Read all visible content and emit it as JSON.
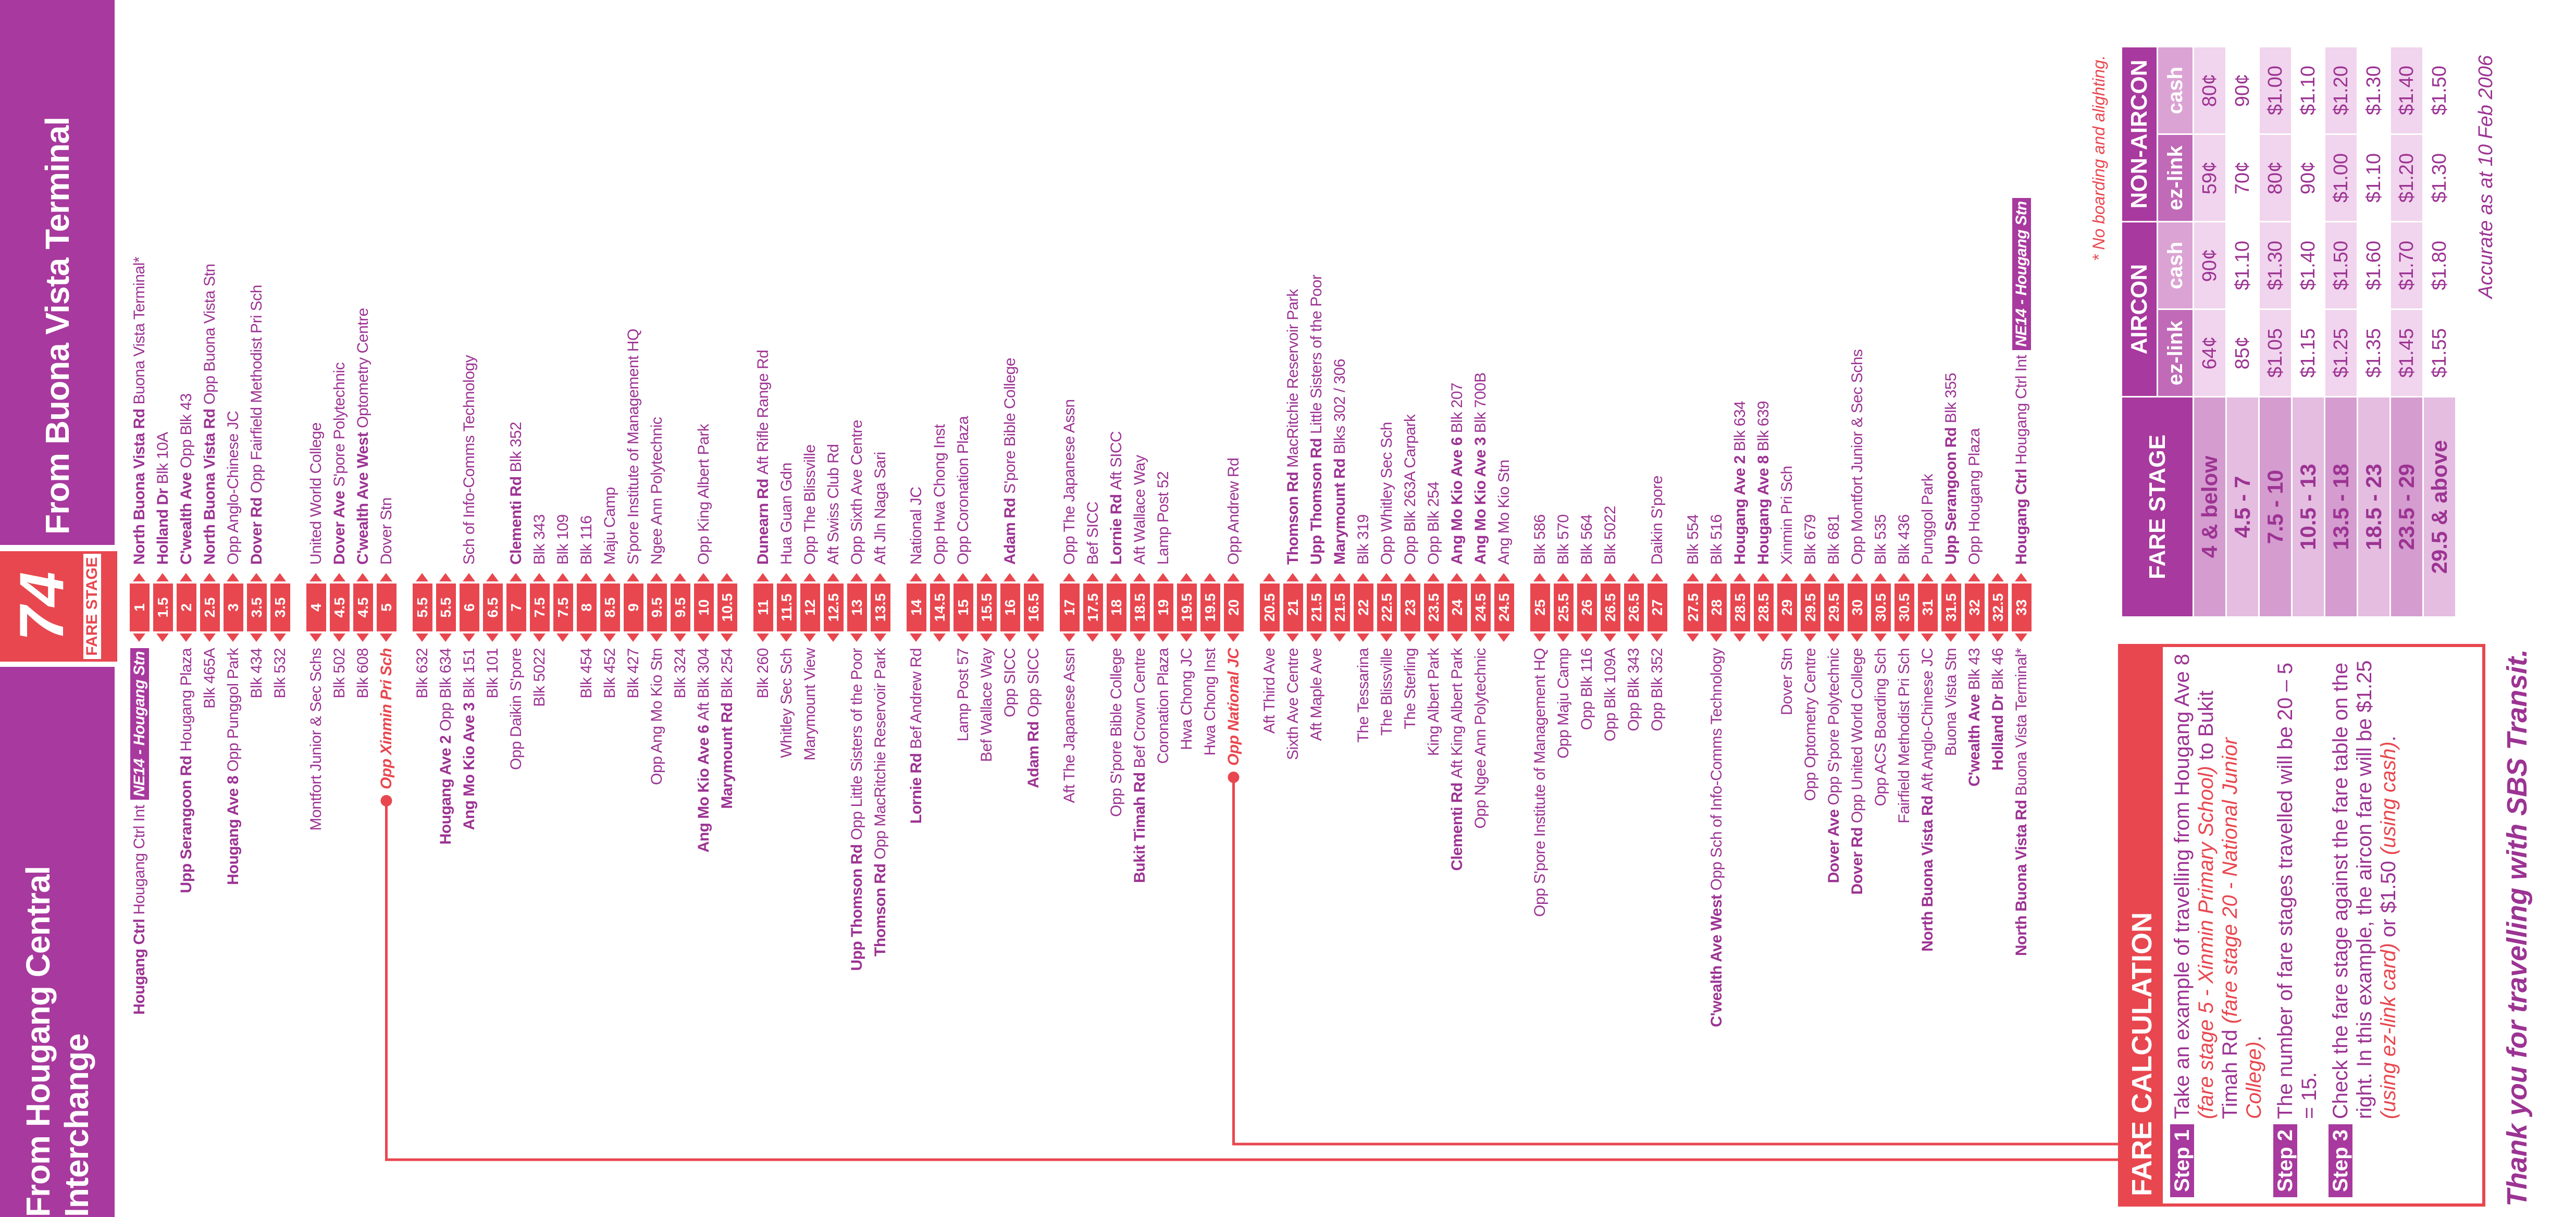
{
  "route": "74",
  "route_label": "FARE STAGE",
  "headers": {
    "from_left": "From Hougang Central Interchange",
    "from_right": "From Buona Vista Terminal"
  },
  "groups": [
    [
      {
        "stage": 1,
        "left": {
          "road": "Hougang Ctrl",
          "name": "Hougang Ctrl Int",
          "badge": "NE14 - Hougang Stn"
        },
        "right": {
          "road": "North Buona Vista Rd",
          "name": "Buona Vista Terminal*"
        }
      },
      {
        "stage": 1.5,
        "left": null,
        "right": {
          "road": "Holland Dr",
          "name": "Blk 10A"
        }
      },
      {
        "stage": 2,
        "left": {
          "road": "Upp Serangoon Rd",
          "name": "Hougang Plaza"
        },
        "right": {
          "road": "C'wealth Ave",
          "name": "Opp Blk 43"
        }
      },
      {
        "stage": 2.5,
        "left": {
          "name": "Blk 465A"
        },
        "right": {
          "road": "North Buona Vista Rd",
          "name": "Opp Buona Vista Stn"
        }
      },
      {
        "stage": 3,
        "left": {
          "road": "Hougang Ave 8",
          "name": "Opp Punggol Park"
        },
        "right": {
          "name": "Opp Anglo-Chinese JC"
        }
      },
      {
        "stage": 3.5,
        "left": {
          "name": "Blk 434"
        },
        "right": {
          "road": "Dover Rd",
          "name": "Opp Fairfield Methodist Pri Sch"
        }
      },
      {
        "stage": 3.5,
        "left": {
          "name": "Blk 532"
        },
        "right": null
      }
    ],
    [
      {
        "stage": 4,
        "left": {
          "name": "Montfort Junior & Sec Schs"
        },
        "right": {
          "name": "United World College"
        }
      },
      {
        "stage": 4.5,
        "left": {
          "name": "Blk 502"
        },
        "right": {
          "road": "Dover Ave",
          "name": "S'pore Polytechnic"
        }
      },
      {
        "stage": 4.5,
        "left": {
          "name": "Blk 608"
        },
        "right": {
          "road": "C'wealth Ave West",
          "name": "Optometry Centre"
        }
      },
      {
        "stage": 5,
        "left": {
          "name": "Opp Xinmin Pri Sch",
          "highlight": true
        },
        "right": {
          "name": "Dover Stn"
        }
      }
    ],
    [
      {
        "stage": 5.5,
        "left": {
          "name": "Blk 632"
        },
        "right": null
      },
      {
        "stage": 5.5,
        "left": {
          "road": "Hougang Ave 2",
          "name": "Opp Blk 634"
        },
        "right": null
      },
      {
        "stage": 6,
        "left": {
          "road": "Ang Mo Kio Ave 3",
          "name": "Blk 151"
        },
        "right": {
          "name": "Sch of Info-Comms Technology"
        }
      },
      {
        "stage": 6.5,
        "left": {
          "name": "Blk 101"
        },
        "right": null
      },
      {
        "stage": 7,
        "left": {
          "name": "Opp Daikin S'pore"
        },
        "right": {
          "road": "Clementi Rd",
          "name": "Blk 352"
        }
      },
      {
        "stage": 7.5,
        "left": {
          "name": "Blk 5022"
        },
        "right": {
          "name": "Blk 343"
        }
      },
      {
        "stage": 7.5,
        "left": null,
        "right": {
          "name": "Blk 109"
        }
      },
      {
        "stage": 8,
        "left": {
          "name": "Blk 454"
        },
        "right": {
          "name": "Blk 116"
        }
      },
      {
        "stage": 8.5,
        "left": {
          "name": "Blk 452"
        },
        "right": {
          "name": "Maju Camp"
        }
      },
      {
        "stage": 9,
        "left": {
          "name": "Blk 427"
        },
        "right": {
          "name": "S'pore Institute of Management HQ"
        }
      },
      {
        "stage": 9.5,
        "left": {
          "name": "Opp Ang Mo Kio Stn"
        },
        "right": {
          "name": "Ngee Ann Polytechnic"
        }
      },
      {
        "stage": 9.5,
        "left": {
          "name": "Blk 324"
        },
        "right": null
      },
      {
        "stage": 10,
        "left": {
          "road": "Ang Mo Kio Ave 6",
          "name": "Aft Blk 304"
        },
        "right": {
          "name": "Opp King Albert Park"
        }
      },
      {
        "stage": 10.5,
        "left": {
          "road": "Marymount Rd",
          "name": "Blk 254"
        },
        "right": null
      }
    ],
    [
      {
        "stage": 11,
        "left": {
          "name": "Blk 260"
        },
        "right": {
          "road": "Dunearn Rd",
          "name": "Aft Rifle Range Rd"
        }
      },
      {
        "stage": 11.5,
        "left": {
          "name": "Whitley Sec Sch"
        },
        "right": {
          "name": "Hua Guan Gdn"
        }
      },
      {
        "stage": 12,
        "left": {
          "name": "Marymount View"
        },
        "right": {
          "name": "Opp The Blissville"
        }
      },
      {
        "stage": 12.5,
        "left": null,
        "right": {
          "name": "Aft Swiss Club Rd"
        }
      },
      {
        "stage": 13,
        "left": {
          "road": "Upp Thomson Rd",
          "name": "Opp Little Sisters of the Poor"
        },
        "right": {
          "name": "Opp Sixth Ave Centre"
        }
      },
      {
        "stage": 13.5,
        "left": {
          "road": "Thomson Rd",
          "name": "Opp MacRitchie Reservoir Park"
        },
        "right": {
          "name": "Aft Jln Naga Sari"
        }
      }
    ],
    [
      {
        "stage": 14,
        "left": {
          "road": "Lornie Rd",
          "name": "Bef Andrew Rd"
        },
        "right": {
          "name": "National JC"
        }
      },
      {
        "stage": 14.5,
        "left": null,
        "right": {
          "name": "Opp Hwa Chong Inst"
        }
      },
      {
        "stage": 15,
        "left": {
          "name": "Lamp Post 57"
        },
        "right": {
          "name": "Opp Coronation Plaza"
        }
      },
      {
        "stage": 15.5,
        "left": {
          "name": "Bef Wallace Way"
        },
        "right": null
      },
      {
        "stage": 16,
        "left": {
          "name": "Opp SICC"
        },
        "right": {
          "road": "Adam Rd",
          "name": "S'pore Bible College"
        }
      },
      {
        "stage": 16.5,
        "left": {
          "road": "Adam Rd",
          "name": "Opp SICC"
        },
        "right": null
      }
    ],
    [
      {
        "stage": 17,
        "left": {
          "name": "Aft The Japanese Assn"
        },
        "right": {
          "name": "Opp The Japanese Assn"
        }
      },
      {
        "stage": 17.5,
        "left": null,
        "right": {
          "name": "Bef SICC"
        }
      },
      {
        "stage": 18,
        "left": {
          "name": "Opp S'pore Bible College"
        },
        "right": {
          "road": "Lornie Rd",
          "name": "Aft SICC"
        }
      },
      {
        "stage": 18.5,
        "left": {
          "road": "Bukit Timah Rd",
          "name": "Bef Crown Centre"
        },
        "right": {
          "name": "Aft Wallace Way"
        }
      },
      {
        "stage": 19,
        "left": {
          "name": "Coronation Plaza"
        },
        "right": {
          "name": "Lamp Post 52"
        }
      },
      {
        "stage": 19.5,
        "left": {
          "name": "Hwa Chong JC"
        },
        "right": null
      },
      {
        "stage": 19.5,
        "left": {
          "name": "Hwa Chong Inst"
        },
        "right": null
      },
      {
        "stage": 20,
        "left": {
          "name": "Opp National JC",
          "highlight": true
        },
        "right": {
          "name": "Opp Andrew Rd"
        }
      }
    ],
    [
      {
        "stage": 20.5,
        "left": {
          "name": "Aft Third Ave"
        },
        "right": null
      },
      {
        "stage": 21,
        "left": {
          "name": "Sixth Ave Centre"
        },
        "right": {
          "road": "Thomson Rd",
          "name": "MacRitchie Reservoir Park"
        }
      },
      {
        "stage": 21.5,
        "left": {
          "name": "Aft Maple Ave"
        },
        "right": {
          "road": "Upp Thomson Rd",
          "name": "Little Sisters of the Poor"
        }
      },
      {
        "stage": 21.5,
        "left": null,
        "right": {
          "road": "Marymount Rd",
          "name": "Blks 302 / 306"
        }
      },
      {
        "stage": 22,
        "left": {
          "name": "The Tessarina"
        },
        "right": {
          "name": "Blk 319"
        }
      },
      {
        "stage": 22.5,
        "left": {
          "name": "The Blissville"
        },
        "right": {
          "name": "Opp Whitley Sec Sch"
        }
      },
      {
        "stage": 23,
        "left": {
          "name": "The Sterling"
        },
        "right": {
          "name": "Opp Blk 263A Carpark"
        }
      },
      {
        "stage": 23.5,
        "left": {
          "name": "King Albert Park"
        },
        "right": {
          "name": "Opp Blk 254"
        }
      },
      {
        "stage": 24,
        "left": {
          "road": "Clementi Rd",
          "name": "Aft King Albert Park"
        },
        "right": {
          "road": "Ang Mo Kio Ave 6",
          "name": "Blk 207"
        }
      },
      {
        "stage": 24.5,
        "left": {
          "name": "Opp Ngee Ann Polytechnic"
        },
        "right": {
          "road": "Ang Mo Kio Ave 3",
          "name": "Blk 700B"
        }
      },
      {
        "stage": 24.5,
        "left": null,
        "right": {
          "name": "Ang Mo Kio Stn"
        }
      }
    ],
    [
      {
        "stage": 25,
        "left": {
          "name": "Opp S'pore Institute of Management HQ"
        },
        "right": {
          "name": "Blk 586"
        }
      },
      {
        "stage": 25.5,
        "left": {
          "name": "Opp Maju Camp"
        },
        "right": {
          "name": "Blk 570"
        }
      },
      {
        "stage": 26,
        "left": {
          "name": "Opp Blk 116"
        },
        "right": {
          "name": "Blk 564"
        }
      },
      {
        "stage": 26.5,
        "left": {
          "name": "Opp Blk 109A"
        },
        "right": {
          "name": "Blk 5022"
        }
      },
      {
        "stage": 26.5,
        "left": {
          "name": "Opp Blk 343"
        },
        "right": null
      },
      {
        "stage": 27,
        "left": {
          "name": "Opp Blk 352"
        },
        "right": {
          "name": "Daikin S'pore"
        }
      }
    ],
    [
      {
        "stage": 27.5,
        "left": null,
        "right": {
          "name": "Blk 554"
        }
      },
      {
        "stage": 28,
        "left": {
          "road": "C'wealth Ave West",
          "name": "Opp Sch of Info-Comms Technology"
        },
        "right": {
          "name": "Blk 516"
        }
      },
      {
        "stage": 28.5,
        "left": null,
        "right": {
          "road": "Hougang Ave 2",
          "name": "Blk 634"
        }
      },
      {
        "stage": 28.5,
        "left": null,
        "right": {
          "road": "Hougang Ave 8",
          "name": "Blk 639"
        }
      },
      {
        "stage": 29,
        "left": {
          "name": "Dover Stn"
        },
        "right": {
          "name": "Xinmin Pri Sch"
        }
      },
      {
        "stage": 29.5,
        "left": {
          "name": "Opp Optometry Centre"
        },
        "right": {
          "name": "Blk 679"
        }
      },
      {
        "stage": 29.5,
        "left": {
          "road": "Dover Ave",
          "name": "Opp S'pore Polytechnic"
        },
        "right": {
          "name": "Blk 681"
        }
      },
      {
        "stage": 30,
        "left": {
          "road": "Dover Rd",
          "name": "Opp United World College"
        },
        "right": {
          "name": "Opp Montfort Junior & Sec Schs"
        }
      },
      {
        "stage": 30.5,
        "left": {
          "name": "Opp ACS Boarding Sch"
        },
        "right": {
          "name": "Blk 535"
        }
      },
      {
        "stage": 30.5,
        "left": {
          "name": "Fairfield Methodist Pri Sch"
        },
        "right": {
          "name": "Blk 436"
        }
      },
      {
        "stage": 31,
        "left": {
          "road": "North Buona Vista Rd",
          "name": "Aft Anglo-Chinese JC"
        },
        "right": {
          "name": "Punggol Park"
        }
      },
      {
        "stage": 31.5,
        "left": {
          "name": "Buona Vista Stn"
        },
        "right": {
          "road": "Upp Serangoon Rd",
          "name": "Blk 355"
        }
      },
      {
        "stage": 32,
        "left": {
          "road": "C'wealth Ave",
          "name": "Blk 43"
        },
        "right": {
          "name": "Opp Hougang Plaza"
        }
      },
      {
        "stage": 32.5,
        "left": {
          "road": "Holland Dr",
          "name": "Blk 46"
        },
        "right": null
      },
      {
        "stage": 33,
        "left": {
          "road": "North Buona Vista Rd",
          "name": "Buona Vista Terminal*"
        },
        "right": {
          "road": "Hougang Ctrl",
          "name": "Hougang Ctrl Int",
          "badge": "NE14 - Hougang Stn"
        }
      }
    ]
  ],
  "fare_calculation": {
    "title": "FARE CALCULATION",
    "steps": [
      {
        "label": "Step 1",
        "parts": [
          {
            "text": "Take an example of travelling from Hougang Ave 8 "
          },
          {
            "text": "(fare stage 5 - Xinmin Primary School)",
            "em": true
          },
          {
            "text": " to Bukit Timah Rd "
          },
          {
            "text": "(fare stage 20 - National Junior College)",
            "em": true
          },
          {
            "text": "."
          }
        ]
      },
      {
        "label": "Step 2",
        "parts": [
          {
            "text": "The number of fare stages travelled will be 20 – 5 = 15."
          }
        ]
      },
      {
        "label": "Step 3",
        "parts": [
          {
            "text": "Check the fare stage against the fare table on the right. In this example, the aircon fare will be $1.25 "
          },
          {
            "text": "(using ez-link card)",
            "em": true
          },
          {
            "text": " or $1.50 "
          },
          {
            "text": "(using cash)",
            "em": true
          },
          {
            "text": "."
          }
        ]
      }
    ]
  },
  "fare_table": {
    "stage_header": "FARE STAGE",
    "groups": [
      {
        "name": "AIRCON",
        "columns": [
          "ez-link",
          "cash"
        ]
      },
      {
        "name": "NON-AIRCON",
        "columns": [
          "ez-link",
          "cash"
        ]
      }
    ],
    "rows": [
      {
        "stage": "4 & below",
        "fares": [
          "64¢",
          "90¢",
          "59¢",
          "80¢"
        ]
      },
      {
        "stage": "4.5 - 7",
        "fares": [
          "85¢",
          "$1.10",
          "70¢",
          "90¢"
        ]
      },
      {
        "stage": "7.5 - 10",
        "fares": [
          "$1.05",
          "$1.30",
          "80¢",
          "$1.00"
        ]
      },
      {
        "stage": "10.5 - 13",
        "fares": [
          "$1.15",
          "$1.40",
          "90¢",
          "$1.10"
        ]
      },
      {
        "stage": "13.5 - 18",
        "fares": [
          "$1.25",
          "$1.50",
          "$1.00",
          "$1.20"
        ]
      },
      {
        "stage": "18.5 - 23",
        "fares": [
          "$1.35",
          "$1.60",
          "$1.10",
          "$1.30"
        ]
      },
      {
        "stage": "23.5 - 29",
        "fares": [
          "$1.45",
          "$1.70",
          "$1.20",
          "$1.40"
        ]
      },
      {
        "stage": "29.5 & above",
        "fares": [
          "$1.55",
          "$1.80",
          "$1.30",
          "$1.50"
        ]
      }
    ]
  },
  "note": "* No boarding and alighting.",
  "accurate": "Accurate as at 10 Feb 2006",
  "thanks": "Thank you for travelling with SBS Transit."
}
